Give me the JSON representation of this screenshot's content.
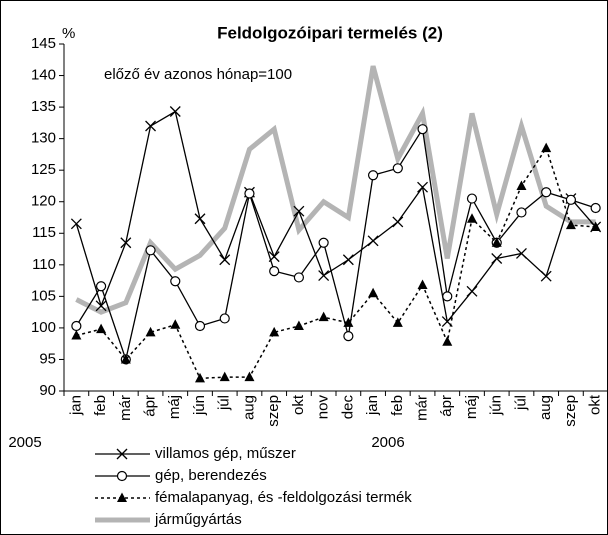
{
  "chart_data": {
    "type": "line",
    "title": "Feldolgozóipari termelés (2)",
    "y_unit": "%",
    "annotation": "előző év azonos hónap=100",
    "categories": [
      "jan",
      "feb",
      "már",
      "ápr",
      "máj",
      "jún",
      "júl",
      "aug",
      "szep",
      "okt",
      "nov",
      "dec",
      "jan",
      "feb",
      "már",
      "ápr",
      "máj",
      "jún",
      "júl",
      "aug",
      "szep",
      "okt"
    ],
    "years": [
      "2005",
      "2006"
    ],
    "ylim": [
      90,
      145
    ],
    "yticks": [
      90,
      95,
      100,
      105,
      110,
      115,
      120,
      125,
      130,
      135,
      140,
      145
    ],
    "grid": false,
    "series": [
      {
        "name": "villamos gép, műszer",
        "color": "#000000",
        "marker": "x",
        "style": "solid",
        "values": [
          116.5,
          103.5,
          113.5,
          132,
          134.3,
          117.3,
          110.8,
          121.5,
          111.3,
          118.5,
          108.3,
          110.8,
          113.8,
          116.8,
          122.3,
          101,
          105.8,
          111,
          111.8,
          108.2,
          120.5,
          116
        ]
      },
      {
        "name": "gép, berendezés",
        "color": "#000000",
        "marker": "circle",
        "style": "solid",
        "values": [
          100.3,
          106.6,
          95,
          112.3,
          107.4,
          100.3,
          101.5,
          121.3,
          109,
          108,
          113.5,
          98.7,
          124.2,
          125.3,
          131.5,
          105,
          120.5,
          113.5,
          118.3,
          121.5,
          120.3,
          119
        ]
      },
      {
        "name": "fémalapanyag, és -feldolgozási termék",
        "color": "#000000",
        "marker": "triangle",
        "style": "dotted",
        "values": [
          98.8,
          99.8,
          95,
          99.3,
          100.5,
          92,
          92.2,
          92.2,
          99.3,
          100.3,
          101.7,
          100.8,
          105.5,
          100.8,
          106.8,
          97.8,
          117.3,
          113.5,
          122.5,
          128.5,
          116.3,
          116
        ]
      },
      {
        "name": "járműgyártás",
        "color": "#b4b4b4",
        "marker": null,
        "style": "thick",
        "values": [
          104.5,
          102.5,
          104,
          113.5,
          109.3,
          111.5,
          115.8,
          128.3,
          131.5,
          115.5,
          120,
          117.5,
          141.5,
          126.8,
          134,
          111,
          134,
          118,
          132,
          119.3,
          116.8,
          116.8
        ]
      }
    ]
  }
}
